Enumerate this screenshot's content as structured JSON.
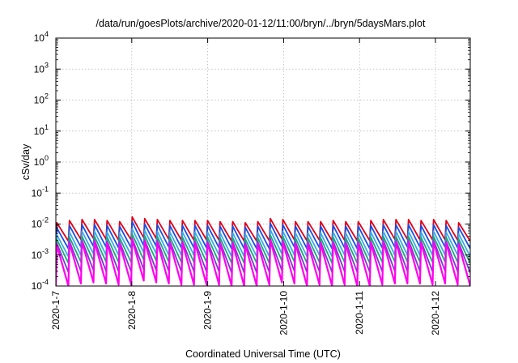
{
  "chart_data": {
    "type": "line",
    "title": "/data/run/goesPlots/archive/2020-01-12/11:00/bryn/../bryn/5daysMars.plot",
    "xlabel": "Coordinated Universal Time (UTC)",
    "ylabel": "cSv/day",
    "yscale": "log",
    "ylim": [
      0.0001,
      10000
    ],
    "y_ticks": [
      {
        "value": 0.0001,
        "base": "10",
        "exp": "-4"
      },
      {
        "value": 0.001,
        "base": "10",
        "exp": "-3"
      },
      {
        "value": 0.01,
        "base": "10",
        "exp": "-2"
      },
      {
        "value": 0.1,
        "base": "10",
        "exp": "-1"
      },
      {
        "value": 1,
        "base": "10",
        "exp": "0"
      },
      {
        "value": 10,
        "base": "10",
        "exp": "1"
      },
      {
        "value": 100,
        "base": "10",
        "exp": "2"
      },
      {
        "value": 1000,
        "base": "10",
        "exp": "3"
      },
      {
        "value": 10000,
        "base": "10",
        "exp": "4"
      }
    ],
    "xlim": [
      "2020-01-07T00:00",
      "2020-01-12T11:00"
    ],
    "x_ticks": [
      "2020-1-7",
      "2020-1-8",
      "2020-1-9",
      "2020-1-10",
      "2020-1-11",
      "2020-1-12"
    ],
    "grid": true,
    "series": [
      {
        "color": "#e0001a",
        "peaks": [
          0.011,
          0.013,
          0.014,
          0.014,
          0.013,
          0.012,
          0.017,
          0.015,
          0.014,
          0.013,
          0.013,
          0.013,
          0.013,
          0.012,
          0.012,
          0.011,
          0.012,
          0.015,
          0.014,
          0.012,
          0.012,
          0.012,
          0.013,
          0.012,
          0.012,
          0.013,
          0.014,
          0.014,
          0.014,
          0.013,
          0.014,
          0.013,
          0.011
        ],
        "troughs": [
          0.0028,
          0.0032,
          0.0034,
          0.0032,
          0.003,
          0.0031,
          0.0036,
          0.0034,
          0.0032,
          0.003,
          0.003,
          0.0031,
          0.003,
          0.0028,
          0.0028,
          0.0028,
          0.0029,
          0.0033,
          0.0031,
          0.0029,
          0.003,
          0.0029,
          0.003,
          0.0029,
          0.0029,
          0.003,
          0.0032,
          0.0032,
          0.0031,
          0.0031,
          0.0031,
          0.003,
          0.0028
        ]
      },
      {
        "color": "#1a4fe0",
        "peaks": [
          0.0075,
          0.009,
          0.0095,
          0.0095,
          0.009,
          0.0085,
          0.012,
          0.01,
          0.0095,
          0.009,
          0.009,
          0.009,
          0.009,
          0.0085,
          0.0085,
          0.0078,
          0.0085,
          0.0105,
          0.0095,
          0.0085,
          0.0085,
          0.0085,
          0.009,
          0.0085,
          0.0085,
          0.009,
          0.0095,
          0.0095,
          0.0095,
          0.009,
          0.0095,
          0.009,
          0.0078
        ],
        "troughs": [
          0.0016,
          0.0018,
          0.0019,
          0.0018,
          0.0017,
          0.0017,
          0.002,
          0.0019,
          0.0018,
          0.0017,
          0.0017,
          0.0017,
          0.0017,
          0.0016,
          0.0016,
          0.0016,
          0.0016,
          0.0019,
          0.0018,
          0.0016,
          0.0017,
          0.0016,
          0.0017,
          0.0016,
          0.0016,
          0.0017,
          0.0018,
          0.0018,
          0.0018,
          0.0017,
          0.0018,
          0.0017,
          0.0016
        ]
      },
      {
        "color": "#3aa8e8",
        "peaks": [
          0.0045,
          0.0055,
          0.0058,
          0.0058,
          0.0055,
          0.0052,
          0.007,
          0.0062,
          0.0058,
          0.0055,
          0.0055,
          0.0055,
          0.0055,
          0.0052,
          0.0052,
          0.0048,
          0.0052,
          0.0065,
          0.0058,
          0.0052,
          0.0052,
          0.0052,
          0.0055,
          0.0052,
          0.0052,
          0.0055,
          0.0058,
          0.0058,
          0.0058,
          0.0055,
          0.0058,
          0.0055,
          0.0048
        ],
        "troughs": [
          0.0009,
          0.001,
          0.0011,
          0.001,
          0.001,
          0.001,
          0.0012,
          0.0011,
          0.001,
          0.001,
          0.001,
          0.001,
          0.001,
          0.0009,
          0.0009,
          0.0009,
          0.0009,
          0.0011,
          0.001,
          0.0009,
          0.001,
          0.0009,
          0.001,
          0.0009,
          0.0009,
          0.001,
          0.001,
          0.001,
          0.001,
          0.001,
          0.001,
          0.001,
          0.0009
        ]
      },
      {
        "color": "#1aa878",
        "peaks": [
          0.0032,
          0.0038,
          0.004,
          0.004,
          0.0038,
          0.0036,
          0.0048,
          0.0042,
          0.004,
          0.0038,
          0.0038,
          0.0038,
          0.0038,
          0.0036,
          0.0036,
          0.0033,
          0.0036,
          0.0044,
          0.004,
          0.0036,
          0.0036,
          0.0036,
          0.0038,
          0.0036,
          0.0036,
          0.0038,
          0.004,
          0.004,
          0.004,
          0.0038,
          0.004,
          0.0038,
          0.0033
        ],
        "troughs": [
          0.00055,
          0.0006,
          0.00065,
          0.0006,
          0.00058,
          0.00058,
          0.0007,
          0.00065,
          0.0006,
          0.00058,
          0.00058,
          0.00058,
          0.00058,
          0.00055,
          0.00055,
          0.00055,
          0.00055,
          0.00065,
          0.0006,
          0.00055,
          0.00058,
          0.00055,
          0.00058,
          0.00055,
          0.00055,
          0.00058,
          0.0006,
          0.0006,
          0.0006,
          0.00058,
          0.0006,
          0.00058,
          0.00055
        ]
      },
      {
        "color": "#7a3ad0",
        "peaks": [
          0.0024,
          0.0028,
          0.003,
          0.003,
          0.0028,
          0.0027,
          0.0035,
          0.0031,
          0.003,
          0.0028,
          0.0028,
          0.0028,
          0.0028,
          0.0027,
          0.0027,
          0.0025,
          0.0027,
          0.0033,
          0.003,
          0.0027,
          0.0027,
          0.0027,
          0.0028,
          0.0027,
          0.0027,
          0.0028,
          0.003,
          0.003,
          0.003,
          0.0028,
          0.003,
          0.0028,
          0.0025
        ],
        "troughs": [
          0.00028,
          0.0003,
          0.00032,
          0.0003,
          0.00029,
          0.00029,
          0.00034,
          0.00032,
          0.0003,
          0.00029,
          0.00029,
          0.00029,
          0.00029,
          0.00027,
          0.00027,
          0.00027,
          0.00028,
          0.00032,
          0.0003,
          0.00028,
          0.00029,
          0.00028,
          0.00029,
          0.00028,
          0.00028,
          0.00029,
          0.0003,
          0.0003,
          0.0003,
          0.00029,
          0.0003,
          0.00029,
          0.00027
        ]
      },
      {
        "color": "#ff00ee",
        "peaks": [
          0.0021,
          0.0025,
          0.0027,
          0.0027,
          0.0025,
          0.0024,
          0.0032,
          0.0028,
          0.0027,
          0.0025,
          0.0025,
          0.0025,
          0.0025,
          0.0024,
          0.0024,
          0.0022,
          0.0024,
          0.003,
          0.0027,
          0.0024,
          0.0024,
          0.0024,
          0.0025,
          0.0024,
          0.0024,
          0.0025,
          0.0027,
          0.0027,
          0.0027,
          0.0025,
          0.0027,
          0.0025,
          0.0022
        ],
        "troughs": [
          0.0001,
          0.00012,
          0.00013,
          0.00012,
          0.00011,
          0.00011,
          0.00015,
          0.00013,
          0.00012,
          0.00011,
          0.00011,
          0.00011,
          0.00011,
          0.0001,
          0.0001,
          0.0001,
          0.00011,
          0.00013,
          0.00012,
          0.0001,
          0.00011,
          0.0001,
          0.00011,
          0.0001,
          0.0001,
          0.00011,
          0.00012,
          0.00012,
          0.00012,
          0.00011,
          0.00012,
          0.00011,
          0.0001
        ]
      }
    ]
  }
}
